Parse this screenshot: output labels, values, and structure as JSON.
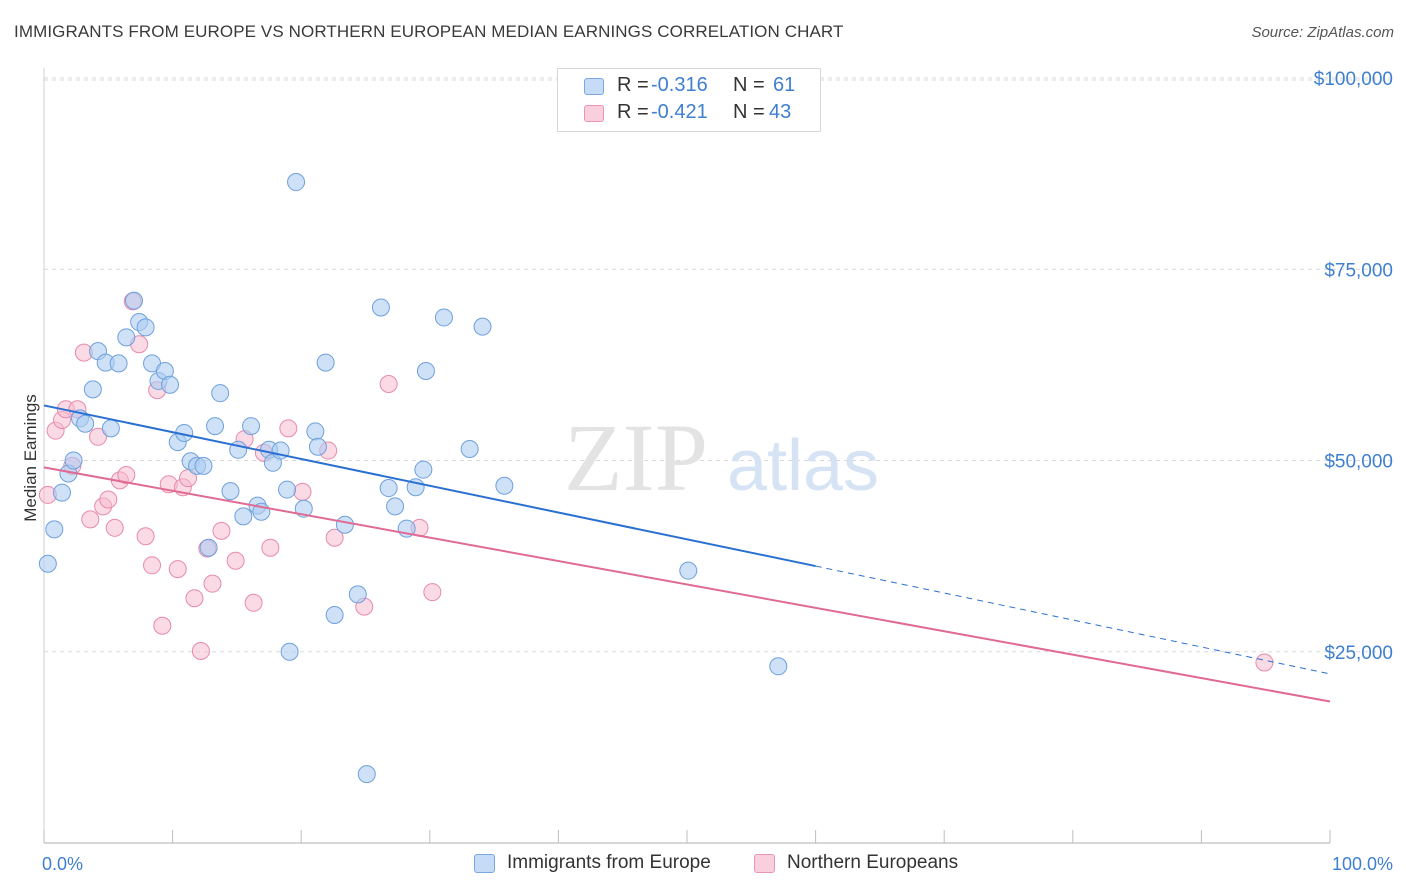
{
  "header": {
    "title": "IMMIGRANTS FROM EUROPE VS NORTHERN EUROPEAN MEDIAN EARNINGS CORRELATION CHART",
    "source": "Source: ZipAtlas.com"
  },
  "watermark": {
    "zip": "ZIP",
    "atlas": "atlas"
  },
  "legend": {
    "r_label": "R =",
    "n_label": "N =",
    "rows": [
      {
        "r": "-0.316",
        "n": "61"
      },
      {
        "r": "-0.421",
        "n": "43"
      }
    ]
  },
  "colors": {
    "blue_fill": "#aecdf2",
    "blue_stroke": "#6fa0dc",
    "blue_line": "#2a70d2",
    "pink_fill": "#f6bcd0",
    "pink_stroke": "#e88aab",
    "pink_line": "#e06a93",
    "tick_text": "#3f7fd0",
    "grid": "#d9d9d9"
  },
  "chart_data": {
    "type": "scatter",
    "title": "IMMIGRANTS FROM EUROPE VS NORTHERN EUROPEAN MEDIAN EARNINGS CORRELATION CHART",
    "xlabel": "",
    "ylabel": "Median Earnings",
    "xlim": [
      0,
      100
    ],
    "ylim": [
      0,
      102000
    ],
    "x_tick_labels": [
      "0.0%",
      "100.0%"
    ],
    "y_ticks": [
      25000,
      50000,
      75000,
      100000
    ],
    "y_tick_labels": [
      "$25,000",
      "$50,000",
      "$75,000",
      "$100,000"
    ],
    "grid": true,
    "legend_position": "bottom",
    "series": [
      {
        "name": "Immigrants from Europe",
        "color": "#aecdf2",
        "points": [
          [
            0.3,
            36500
          ],
          [
            0.8,
            41000
          ],
          [
            1.4,
            45800
          ],
          [
            1.9,
            48300
          ],
          [
            2.3,
            50000
          ],
          [
            2.8,
            55500
          ],
          [
            3.2,
            54800
          ],
          [
            3.8,
            59300
          ],
          [
            4.2,
            64300
          ],
          [
            4.8,
            62800
          ],
          [
            5.2,
            54200
          ],
          [
            5.8,
            62700
          ],
          [
            6.4,
            66100
          ],
          [
            7.0,
            70900
          ],
          [
            7.4,
            68100
          ],
          [
            7.9,
            67400
          ],
          [
            8.4,
            62700
          ],
          [
            8.9,
            60400
          ],
          [
            9.4,
            61700
          ],
          [
            9.8,
            59900
          ],
          [
            10.4,
            52400
          ],
          [
            10.9,
            53600
          ],
          [
            11.4,
            49900
          ],
          [
            11.9,
            49300
          ],
          [
            12.4,
            49300
          ],
          [
            12.8,
            38600
          ],
          [
            13.3,
            54500
          ],
          [
            13.7,
            58800
          ],
          [
            14.5,
            46000
          ],
          [
            15.1,
            51400
          ],
          [
            15.5,
            42700
          ],
          [
            16.1,
            54500
          ],
          [
            16.6,
            44100
          ],
          [
            16.9,
            43300
          ],
          [
            17.5,
            51400
          ],
          [
            17.8,
            49700
          ],
          [
            18.4,
            51300
          ],
          [
            18.9,
            46200
          ],
          [
            19.1,
            25000
          ],
          [
            19.6,
            86400
          ],
          [
            20.2,
            43700
          ],
          [
            21.1,
            53800
          ],
          [
            21.3,
            51800
          ],
          [
            21.9,
            62800
          ],
          [
            22.6,
            29800
          ],
          [
            23.4,
            41600
          ],
          [
            24.4,
            32500
          ],
          [
            25.1,
            9000
          ],
          [
            26.2,
            70000
          ],
          [
            26.8,
            46400
          ],
          [
            27.3,
            44000
          ],
          [
            28.2,
            41100
          ],
          [
            28.9,
            46500
          ],
          [
            29.5,
            48800
          ],
          [
            29.7,
            61700
          ],
          [
            31.1,
            68700
          ],
          [
            33.1,
            51500
          ],
          [
            34.1,
            67500
          ],
          [
            35.8,
            46700
          ],
          [
            50.1,
            35600
          ],
          [
            57.1,
            23100
          ]
        ]
      },
      {
        "name": "Northern Europeans",
        "color": "#f6bcd0",
        "points": [
          [
            0.3,
            45500
          ],
          [
            0.9,
            53900
          ],
          [
            1.4,
            55300
          ],
          [
            1.7,
            56700
          ],
          [
            2.2,
            49300
          ],
          [
            2.6,
            56700
          ],
          [
            3.1,
            64100
          ],
          [
            3.6,
            42300
          ],
          [
            4.2,
            53100
          ],
          [
            4.6,
            44000
          ],
          [
            5.0,
            44900
          ],
          [
            5.5,
            41200
          ],
          [
            5.9,
            47400
          ],
          [
            6.4,
            48100
          ],
          [
            6.9,
            70800
          ],
          [
            7.4,
            65200
          ],
          [
            7.9,
            40100
          ],
          [
            8.4,
            36300
          ],
          [
            8.8,
            59200
          ],
          [
            9.2,
            28400
          ],
          [
            9.7,
            46900
          ],
          [
            10.4,
            35800
          ],
          [
            10.8,
            46500
          ],
          [
            11.2,
            47700
          ],
          [
            11.7,
            32000
          ],
          [
            12.2,
            25100
          ],
          [
            12.7,
            38500
          ],
          [
            13.1,
            33900
          ],
          [
            13.8,
            40800
          ],
          [
            14.9,
            36900
          ],
          [
            15.6,
            52800
          ],
          [
            16.3,
            31400
          ],
          [
            17.1,
            51000
          ],
          [
            17.6,
            38600
          ],
          [
            19.0,
            54200
          ],
          [
            20.1,
            45900
          ],
          [
            22.1,
            51300
          ],
          [
            22.6,
            39900
          ],
          [
            24.9,
            30900
          ],
          [
            26.8,
            60000
          ],
          [
            29.2,
            41200
          ],
          [
            30.2,
            32800
          ],
          [
            94.9,
            23600
          ]
        ]
      }
    ],
    "trend_lines": [
      {
        "series": "Immigrants from Europe",
        "x0": 0,
        "y0": 57200,
        "x1": 60,
        "y1": 36200,
        "dashed_to_x": 100,
        "dashed_to_y": 22100
      },
      {
        "series": "Northern Europeans",
        "x0": 0,
        "y0": 49100,
        "x1": 100,
        "y1": 18500
      }
    ]
  }
}
